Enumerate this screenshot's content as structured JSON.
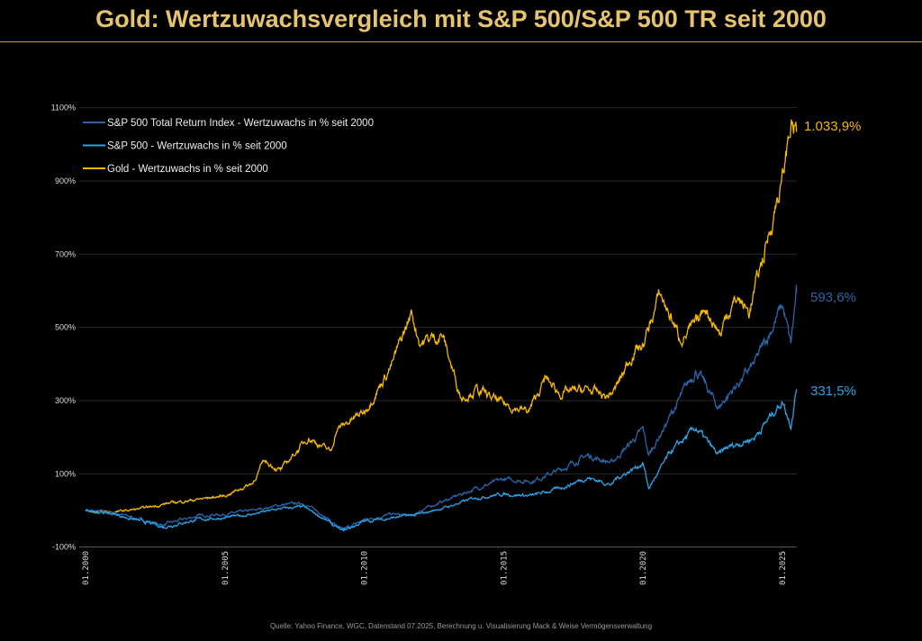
{
  "title": "Gold: Wertzuwachsvergleich mit S&P 500/S&P 500 TR seit 2000",
  "source": "Quelle: Yahoo Finance, WGC, Datenstand 07.2025, Berechnung u. Visualisierung Mack & Weise Vermögensverwaltung",
  "chart_data": {
    "type": "line",
    "title": "Gold: Wertzuwachsvergleich mit S&P 500/S&P 500 TR seit 2000",
    "xlabel": "",
    "ylabel": "",
    "xlim": [
      2000,
      2025.6
    ],
    "ylim": [
      -100,
      1100
    ],
    "grid": true,
    "legend": "top-left",
    "y_ticks": [
      "1100%",
      "900%",
      "700%",
      "500%",
      "300%",
      "100%",
      "-100%"
    ],
    "y_tick_values": [
      1100,
      900,
      700,
      500,
      300,
      100,
      -100
    ],
    "x_ticks": [
      "01.2000",
      "01.2005",
      "01.2010",
      "01.2015",
      "01.2020",
      "01.2025"
    ],
    "x_tick_values": [
      2000,
      2005,
      2010,
      2015,
      2020,
      2025
    ],
    "series": [
      {
        "name": "S&P 500 Total Return Index - Wertzuwachs in % seit 2000",
        "color": "#2a64a8",
        "end_label": "593,6%",
        "x": [
          2000,
          2001,
          2002,
          2002.8,
          2003,
          2004,
          2005,
          2006,
          2007,
          2007.8,
          2008.5,
          2009.2,
          2010,
          2011,
          2011.8,
          2012,
          2013,
          2014,
          2015,
          2016,
          2017,
          2018,
          2018.9,
          2019,
          2020,
          2020.2,
          2021,
          2021.9,
          2022.7,
          2023,
          2024,
          2025,
          2025.3,
          2025.5
        ],
        "y": [
          0,
          -5,
          -25,
          -40,
          -35,
          -15,
          -10,
          0,
          15,
          20,
          -10,
          -55,
          -25,
          -10,
          -15,
          0,
          30,
          60,
          85,
          80,
          110,
          150,
          130,
          140,
          220,
          150,
          260,
          385,
          280,
          310,
          400,
          560,
          450,
          594
        ]
      },
      {
        "name": "S&P 500 - Wertzuwachs in % seit 2000",
        "color": "#29a3e6",
        "end_label": "331,5%",
        "x": [
          2000,
          2001,
          2002,
          2002.8,
          2004,
          2005,
          2006,
          2007,
          2007.8,
          2008.5,
          2009.2,
          2010,
          2011,
          2012,
          2013,
          2014,
          2015,
          2016,
          2017,
          2018,
          2018.9,
          2019,
          2020,
          2020.2,
          2021,
          2021.9,
          2022.7,
          2023,
          2024,
          2025,
          2025.3,
          2025.5
        ],
        "y": [
          0,
          -10,
          -30,
          -45,
          -25,
          -20,
          -10,
          5,
          10,
          -20,
          -57,
          -30,
          -20,
          -10,
          10,
          35,
          45,
          40,
          60,
          90,
          70,
          85,
          130,
          60,
          160,
          225,
          150,
          170,
          200,
          300,
          235,
          331.5
        ]
      },
      {
        "name": "Gold - Wertzuwachs in % seit 2000",
        "color": "#f5b800",
        "end_label": "1.033,9%",
        "x": [
          2000,
          2001,
          2002,
          2003,
          2004,
          2005,
          2006,
          2006.4,
          2007,
          2008,
          2008.8,
          2009,
          2010,
          2011,
          2011.7,
          2012,
          2012.8,
          2013.3,
          2013.5,
          2014,
          2015,
          2015.9,
          2016.5,
          2017,
          2018,
          2018.7,
          2019,
          2019.7,
          2020,
          2020.6,
          2021,
          2021.3,
          2022,
          2022.2,
          2022.8,
          2023,
          2023.4,
          2023.8,
          2024,
          2024.5,
          2024.8,
          2025,
          2025.3,
          2025.5
        ],
        "y": [
          0,
          -5,
          5,
          20,
          30,
          40,
          75,
          135,
          110,
          200,
          160,
          220,
          270,
          400,
          540,
          460,
          480,
          350,
          310,
          330,
          290,
          270,
          360,
          320,
          330,
          310,
          330,
          440,
          450,
          590,
          530,
          470,
          510,
          560,
          480,
          540,
          580,
          540,
          600,
          750,
          850,
          900,
          1060,
          1034
        ]
      }
    ]
  }
}
